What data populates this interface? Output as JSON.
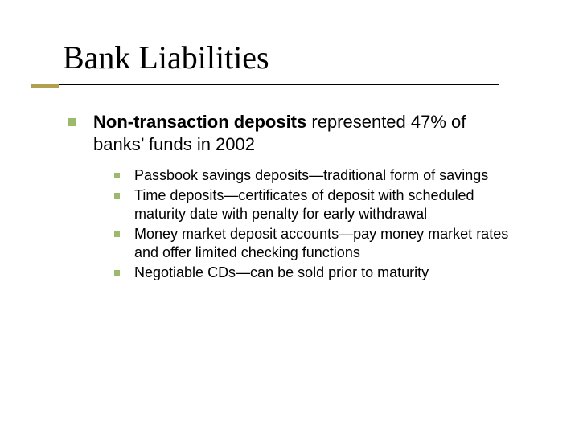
{
  "slide": {
    "title": "Bank Liabilities",
    "title_font_family": "Times New Roman",
    "title_font_size_pt": 40,
    "title_color": "#000000",
    "rule_color": "#000000",
    "accent_color": "#b0a050",
    "background": "#ffffff",
    "bullet_color": "#9db96b",
    "body_font_family": "Verdana",
    "l1_font_size_pt": 22,
    "l2_font_size_pt": 18,
    "main": {
      "bold": "Non-transaction deposits",
      "rest": " represented 47% of banks’ funds in 2002"
    },
    "subitems": [
      "Passbook savings deposits—traditional form of savings",
      "Time deposits—certificates of deposit with scheduled maturity date with penalty for early withdrawal",
      "Money market deposit accounts—pay money market rates and offer limited checking functions",
      "Negotiable CDs—can be sold prior to maturity"
    ]
  }
}
